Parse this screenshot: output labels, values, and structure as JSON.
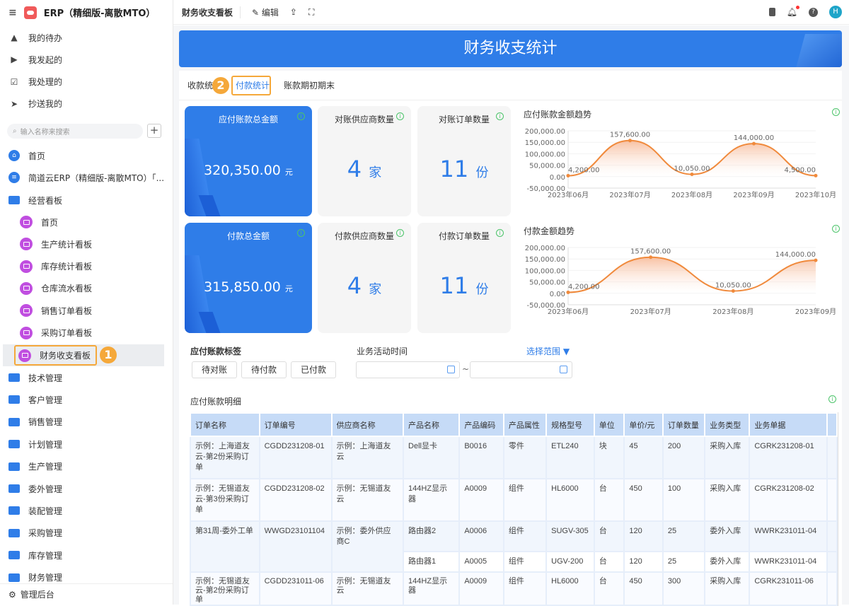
{
  "app": {
    "title": "ERP（精细版-离散MTO）"
  },
  "sidebar": {
    "quick": [
      {
        "label": "我的待办",
        "icon": "bell-icon"
      },
      {
        "label": "我发起的",
        "icon": "play-circle-icon"
      },
      {
        "label": "我处理的",
        "icon": "inbox-check-icon"
      },
      {
        "label": "抄送我的",
        "icon": "send-icon"
      }
    ],
    "search_placeholder": "输入名称来搜索",
    "home": "首页",
    "app_entry": "简道云ERP（精细版-离散MTO）「...",
    "dashboard_group": "经营看板",
    "dashboards": [
      "首页",
      "生产统计看板",
      "库存统计看板",
      "仓库流水看板",
      "销售订单看板",
      "采购订单看板",
      "财务收支看板"
    ],
    "selected_dashboard": "财务收支看板",
    "groups": [
      "技术管理",
      "客户管理",
      "销售管理",
      "计划管理",
      "生产管理",
      "委外管理",
      "装配管理",
      "采购管理",
      "库存管理",
      "财务管理"
    ],
    "footer": "管理后台"
  },
  "annotations": [
    "1",
    "2"
  ],
  "topbar": {
    "title": "财务收支看板",
    "edit": "编辑",
    "avatar": "H"
  },
  "banner": {
    "title": "财务收支统计"
  },
  "tabs": [
    {
      "label": "收款统"
    },
    {
      "label": "付款统计",
      "active": true
    },
    {
      "label": "账款期初期末"
    }
  ],
  "cards": [
    {
      "title": "应付账款总金额",
      "value": "320,350.00",
      "unit": "元",
      "style": "blue"
    },
    {
      "title": "对账供应商数量",
      "value": "4",
      "unit": "家"
    },
    {
      "title": "对账订单数量",
      "value": "11",
      "unit": "份"
    },
    {
      "title": "付款总金额",
      "value": "315,850.00",
      "unit": "元",
      "style": "blue"
    },
    {
      "title": "付款供应商数量",
      "value": "4",
      "unit": "家"
    },
    {
      "title": "付款订单数量",
      "value": "11",
      "unit": "份"
    }
  ],
  "chart_data": [
    {
      "type": "area",
      "title": "应付账款金额趋势",
      "categories": [
        "2023年06月",
        "2023年07月",
        "2023年08月",
        "2023年09月",
        "2023年10月"
      ],
      "values": [
        4200,
        157600,
        10050,
        144000,
        4500
      ],
      "labels": [
        "4,200.00",
        "157,600.00",
        "10,050.00",
        "144,000.00",
        "4,500.00"
      ],
      "ylim": [
        -50000,
        200000
      ],
      "yticks": [
        "200,000.00",
        "150,000.00",
        "100,000.00",
        "50,000.00",
        "0.00",
        "-50,000.00"
      ],
      "color": "#f08a3c"
    },
    {
      "type": "area",
      "title": "付款金额趋势",
      "categories": [
        "2023年06月",
        "2023年07月",
        "2023年08月",
        "2023年09月"
      ],
      "values": [
        4200,
        157600,
        10050,
        144000
      ],
      "labels": [
        "4,200.00",
        "157,600.00",
        "10,050.00",
        "144,000.00"
      ],
      "ylim": [
        -50000,
        200000
      ],
      "yticks": [
        "200,000.00",
        "150,000.00",
        "100,000.00",
        "50,000.00",
        "0.00",
        "-50,000.00"
      ],
      "color": "#f08a3c"
    }
  ],
  "filters": {
    "tag_label": "应付账款标签",
    "tags": [
      "待对账",
      "待付款",
      "已付款"
    ],
    "time_label": "业务活动时间",
    "range_select": "选择范围 ▼",
    "separator": "~"
  },
  "table": {
    "title": "应付账款明细",
    "columns": [
      "订单名称",
      "订单编号",
      "供应商名称",
      "产品名称",
      "产品编码",
      "产品属性",
      "规格型号",
      "单位",
      "单价/元",
      "订单数量",
      "业务类型",
      "业务单据"
    ],
    "groups": [
      {
        "order_name": "示例：上海道友云-第2份采购订单",
        "order_no": "CGDD231208-01",
        "supplier": "示例：上海道友云",
        "items": [
          [
            "Dell显卡",
            "B0016",
            "零件",
            "ETL240",
            "块",
            "45",
            "200",
            "采购入库",
            "CGRK231208-01"
          ]
        ]
      },
      {
        "order_name": "示例：无锡道友云-第3份采购订单",
        "order_no": "CGDD231208-02",
        "supplier": "示例：无锡道友云",
        "items": [
          [
            "144HZ显示器",
            "A0009",
            "组件",
            "HL6000",
            "台",
            "450",
            "100",
            "采购入库",
            "CGRK231208-02"
          ]
        ]
      },
      {
        "order_name": "第31周-委外工单",
        "order_no": "WWGD23101104",
        "supplier": "示例：委外供应商C",
        "items": [
          [
            "路由器2",
            "A0006",
            "组件",
            "SUGV-305",
            "台",
            "120",
            "25",
            "委外入库",
            "WWRK231011-04"
          ],
          [
            "路由器1",
            "A0005",
            "组件",
            "UGV-200",
            "台",
            "120",
            "25",
            "委外入库",
            "WWRK231011-04"
          ]
        ]
      },
      {
        "order_name": "示例：无锡道友云-第2份采购订单",
        "order_no": "CGDD231011-06",
        "supplier": "示例：无锡道友云",
        "items": [
          [
            "144HZ显示器",
            "A0009",
            "组件",
            "HL6000",
            "台",
            "450",
            "300",
            "采购入库",
            "CGRK231011-06"
          ]
        ]
      }
    ]
  }
}
